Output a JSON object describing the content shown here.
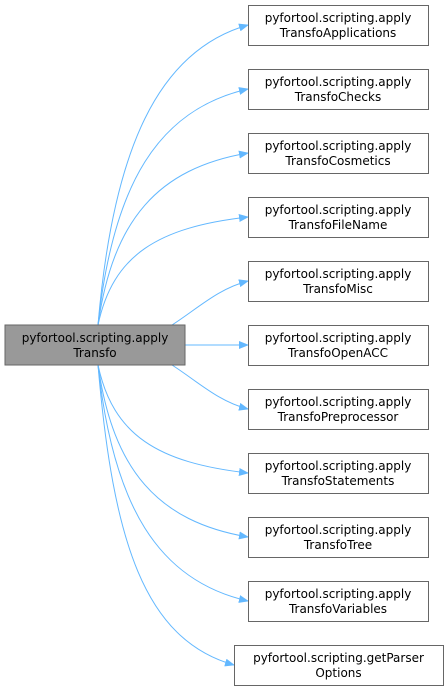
{
  "colors": {
    "edge": "#63b8ff",
    "root_fill": "#999999",
    "node_fill": "#ffffff",
    "node_border": "#666666",
    "text": "#000000"
  },
  "root": {
    "line1": "pyfortool.scripting.apply",
    "line2": "Transfo"
  },
  "targets": [
    {
      "line1": "pyfortool.scripting.apply",
      "line2": "TransfoApplications"
    },
    {
      "line1": "pyfortool.scripting.apply",
      "line2": "TransfoChecks"
    },
    {
      "line1": "pyfortool.scripting.apply",
      "line2": "TransfoCosmetics"
    },
    {
      "line1": "pyfortool.scripting.apply",
      "line2": "TransfoFileName"
    },
    {
      "line1": "pyfortool.scripting.apply",
      "line2": "TransfoMisc"
    },
    {
      "line1": "pyfortool.scripting.apply",
      "line2": "TransfoOpenACC"
    },
    {
      "line1": "pyfortool.scripting.apply",
      "line2": "TransfoPreprocessor"
    },
    {
      "line1": "pyfortool.scripting.apply",
      "line2": "TransfoStatements"
    },
    {
      "line1": "pyfortool.scripting.apply",
      "line2": "TransfoTree"
    },
    {
      "line1": "pyfortool.scripting.apply",
      "line2": "TransfoVariables"
    },
    {
      "line1": "pyfortool.scripting.getParser",
      "line2": "Options"
    }
  ]
}
